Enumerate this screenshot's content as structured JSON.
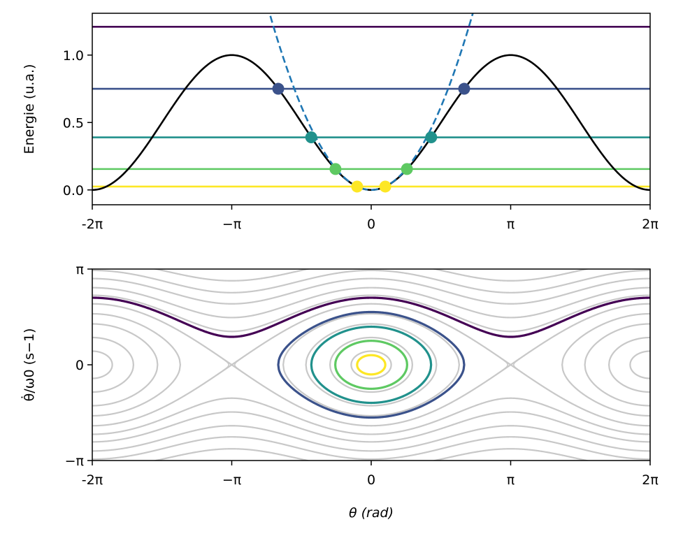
{
  "chart_data": [
    {
      "type": "line",
      "panel": "energy",
      "ylabel": "Energie (u.a.)",
      "xlabel": "",
      "xlim": [
        -6.2832,
        6.2832
      ],
      "ylim": [
        -0.11,
        1.31
      ],
      "x_ticks": [
        -6.2832,
        -3.1416,
        0,
        3.1416,
        6.2832
      ],
      "x_tick_labels": [
        "-2π",
        "−π",
        "0",
        "π",
        "2π"
      ],
      "y_ticks": [
        0,
        0.5,
        1
      ],
      "y_tick_labels": [
        "0.0",
        "0.5",
        "1.0"
      ],
      "potential_color": "#000000",
      "approx_color": "#1f77b4",
      "approx_style": "dashed",
      "energy_levels": [
        {
          "E": 1.21,
          "color": "#440154",
          "marker_theta": null
        },
        {
          "E": 0.75,
          "color": "#3b528b",
          "marker_theta": 2.094
        },
        {
          "E": 0.39,
          "color": "#21918c",
          "marker_theta": 1.351
        },
        {
          "E": 0.155,
          "color": "#5ec962",
          "marker_theta": 0.805
        },
        {
          "E": 0.025,
          "color": "#fde725",
          "marker_theta": 0.317
        }
      ]
    },
    {
      "type": "line",
      "panel": "phase",
      "xlabel": "θ (rad)",
      "ylabel": "θ̇/ω0 (s−1)",
      "xlim": [
        -6.2832,
        6.2832
      ],
      "ylim": [
        -3.1416,
        3.1416
      ],
      "x_ticks": [
        -6.2832,
        -3.1416,
        0,
        3.1416,
        6.2832
      ],
      "x_tick_labels": [
        "-2π",
        "−π",
        "0",
        "π",
        "2π"
      ],
      "y_ticks": [
        -3.1416,
        0,
        3.1416
      ],
      "y_tick_labels": [
        "−π",
        "0",
        "π"
      ],
      "background_color": "#c8c8c8",
      "background_energies": [
        0.05,
        0.2,
        0.45,
        0.7,
        1.0,
        1.3,
        1.6,
        2.0,
        2.4,
        2.9
      ],
      "highlighted": [
        {
          "E": 1.21,
          "color": "#440154"
        },
        {
          "E": 0.75,
          "color": "#3b528b"
        },
        {
          "E": 0.39,
          "color": "#21918c"
        },
        {
          "E": 0.155,
          "color": "#5ec962"
        },
        {
          "E": 0.025,
          "color": "#fde725"
        }
      ]
    }
  ]
}
